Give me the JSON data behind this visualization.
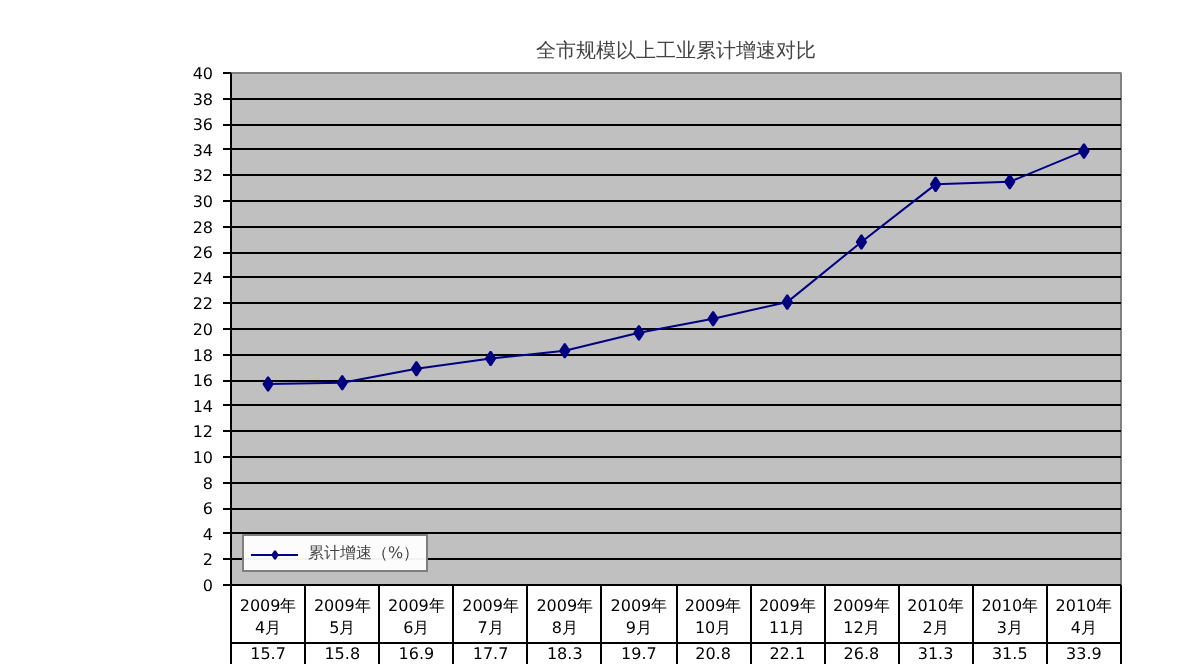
{
  "chart_data": {
    "type": "line",
    "title": "全市规模以上工业累计增速对比",
    "categories": [
      "2009年\n4月",
      "2009年\n5月",
      "2009年\n6月",
      "2009年\n7月",
      "2009年\n8月",
      "2009年\n9月",
      "2009年\n10月",
      "2009年\n11月",
      "2009年\n12月",
      "2010年\n2月",
      "2010年\n3月",
      "2010年\n4月"
    ],
    "series": [
      {
        "name": "累计增速（%）",
        "color": "#000080",
        "values": [
          15.7,
          15.8,
          16.9,
          17.7,
          18.3,
          19.7,
          20.8,
          22.1,
          26.8,
          31.3,
          31.5,
          33.9
        ]
      }
    ],
    "ylim": [
      0,
      40
    ],
    "yticks": [
      0,
      2,
      4,
      6,
      8,
      10,
      12,
      14,
      16,
      18,
      20,
      22,
      24,
      26,
      28,
      30,
      32,
      34,
      36,
      38,
      40
    ],
    "grid": "y",
    "marker": "diamond",
    "line_style": "solid",
    "data_labels": true,
    "legend": "bottom left"
  }
}
